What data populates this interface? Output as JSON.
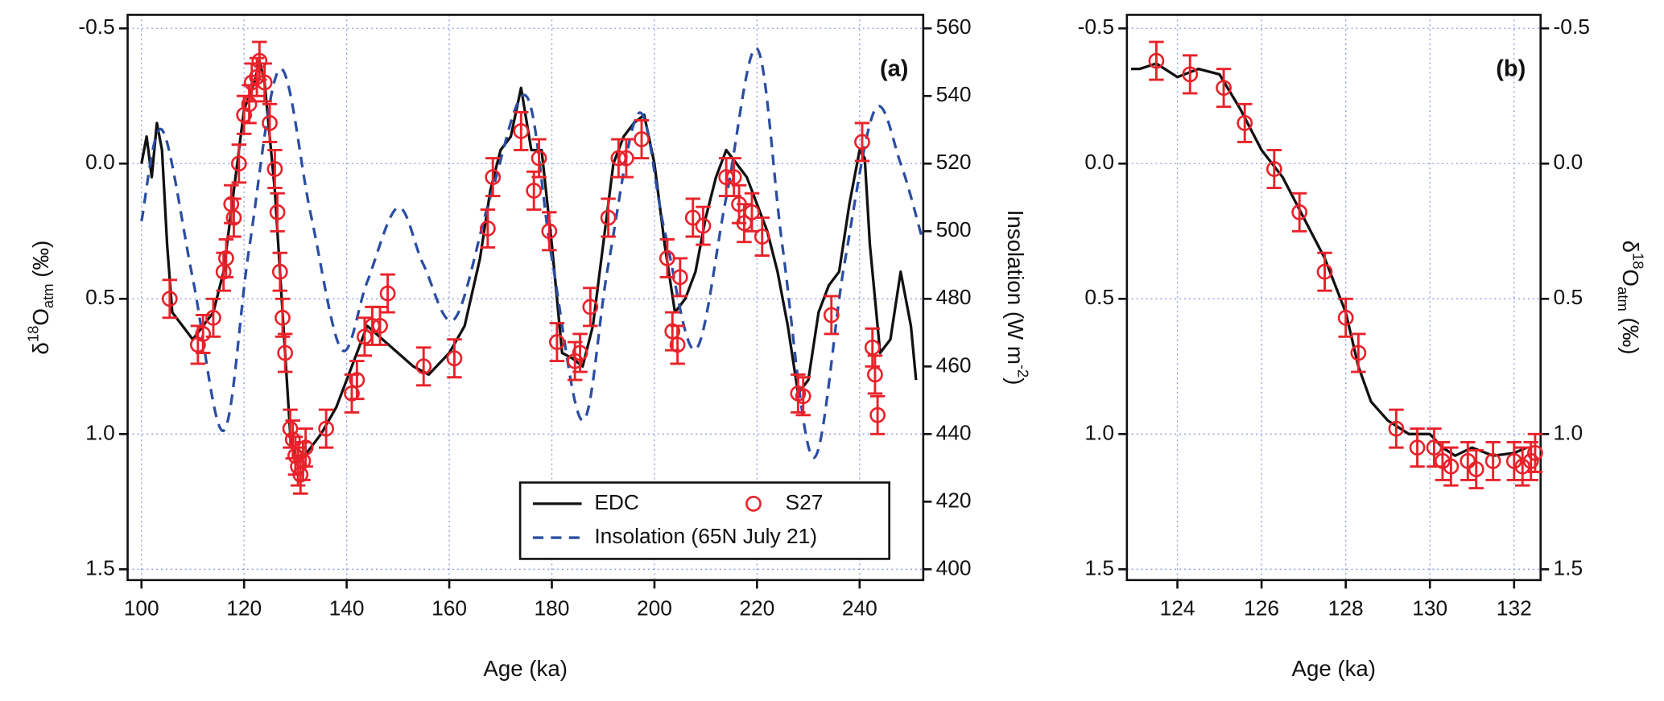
{
  "chart_data": [
    {
      "type": "line",
      "annotation": "(a)",
      "xlabel": "Age (ka)",
      "ylabel": [
        "δ",
        "18",
        "O",
        "atm",
        " (‰)"
      ],
      "y2label": [
        "Insolation (W m",
        "-2",
        ")"
      ],
      "xlim": [
        97.3,
        252.4
      ],
      "xticks": [
        100,
        120,
        140,
        160,
        180,
        200,
        220,
        240
      ],
      "ylim": [
        1.54,
        -0.55
      ],
      "yticks": [
        -0.5,
        {
          "value": 0,
          "label": "0.0"
        },
        0.5,
        {
          "value": 1,
          "label": "1.0"
        },
        1.5
      ],
      "y2lim": [
        396.8,
        564
      ],
      "y2ticks": [
        400,
        420,
        440,
        460,
        480,
        500,
        520,
        540,
        560
      ],
      "grid": true,
      "legend": "lower right",
      "series": [
        {
          "name": "EDC",
          "color": "#111111",
          "x": [
            100,
            101,
            102,
            103,
            104,
            105,
            106,
            108,
            110,
            112,
            114,
            116,
            118,
            119,
            120,
            122,
            123,
            124,
            125,
            126,
            127,
            128,
            129,
            130,
            131,
            133,
            135,
            138,
            141,
            144,
            147,
            150,
            153,
            156,
            160,
            163,
            166,
            168,
            170,
            172,
            174,
            176,
            178,
            180,
            182,
            184,
            186,
            188,
            190,
            192,
            194,
            196,
            198,
            200,
            202,
            204,
            206,
            208,
            210,
            212,
            214,
            216,
            218,
            220,
            222,
            224,
            226,
            228,
            230,
            232,
            234,
            236,
            238,
            240,
            241,
            242,
            244,
            246,
            248,
            250,
            251
          ],
          "values": [
            0.0,
            -0.1,
            0.05,
            -0.15,
            -0.05,
            0.3,
            0.55,
            0.6,
            0.65,
            0.6,
            0.55,
            0.4,
            0.1,
            -0.05,
            -0.2,
            -0.3,
            -0.38,
            -0.3,
            -0.1,
            0.1,
            0.4,
            0.7,
            1.0,
            1.1,
            1.1,
            1.05,
            1.0,
            0.9,
            0.75,
            0.6,
            0.65,
            0.7,
            0.75,
            0.78,
            0.7,
            0.6,
            0.35,
            0.1,
            -0.05,
            -0.1,
            -0.28,
            -0.05,
            -0.05,
            0.3,
            0.7,
            0.72,
            0.75,
            0.6,
            0.3,
            0.0,
            -0.1,
            -0.15,
            -0.18,
            0.0,
            0.3,
            0.55,
            0.5,
            0.4,
            0.2,
            0.05,
            -0.05,
            0.0,
            0.05,
            0.15,
            0.25,
            0.4,
            0.6,
            0.85,
            0.8,
            0.55,
            0.45,
            0.4,
            0.15,
            -0.05,
            -0.02,
            0.3,
            0.7,
            0.65,
            0.4,
            0.6,
            0.8
          ]
        },
        {
          "name": "Insolation (65N July 21)",
          "color": "#2b4ea2",
          "dash": true,
          "axis": "y2",
          "x": [
            100,
            104,
            110,
            116,
            121,
            127,
            133,
            139,
            144,
            150,
            155,
            161,
            168,
            175,
            180,
            186,
            191,
            197,
            202,
            208,
            214,
            220,
            225,
            231,
            237,
            243,
            248,
            252
          ],
          "values": [
            503,
            530,
            486,
            441,
            495,
            548,
            505,
            465,
            485,
            507,
            490,
            474,
            510,
            540,
            492,
            444,
            490,
            535,
            500,
            465,
            510,
            554,
            495,
            433,
            490,
            536,
            520,
            499
          ]
        },
        {
          "name": "S27",
          "color": "#e8222a",
          "type": "scatter",
          "error": 0.07,
          "x": [
            105.5,
            111,
            112,
            114,
            116,
            116.5,
            117.5,
            118,
            119,
            120,
            121,
            121.5,
            122.5,
            123,
            124,
            125,
            126,
            126.5,
            127,
            127.5,
            128,
            129,
            129.5,
            130,
            130.5,
            131,
            131.5,
            132,
            136,
            141,
            142,
            143.5,
            145,
            146.5,
            148,
            155,
            161,
            167.5,
            168.5,
            174,
            176.5,
            177.5,
            179.5,
            181,
            184.5,
            185.5,
            187.5,
            191,
            193,
            194.5,
            197.5,
            202.5,
            203.5,
            204.5,
            205,
            207.5,
            209.5,
            214,
            215.5,
            216.5,
            217.5,
            219,
            221,
            228,
            229,
            234.5,
            240.5,
            242.5,
            243,
            243.5
          ],
          "values": [
            0.5,
            0.67,
            0.63,
            0.57,
            0.4,
            0.35,
            0.15,
            0.2,
            0.0,
            -0.18,
            -0.22,
            -0.3,
            -0.32,
            -0.38,
            -0.3,
            -0.15,
            0.02,
            0.18,
            0.4,
            0.57,
            0.7,
            0.98,
            1.02,
            1.08,
            1.12,
            1.15,
            1.1,
            1.05,
            0.98,
            0.85,
            0.8,
            0.64,
            0.6,
            0.6,
            0.48,
            0.75,
            0.72,
            0.24,
            0.05,
            -0.12,
            0.1,
            -0.02,
            0.25,
            0.66,
            0.73,
            0.7,
            0.53,
            0.2,
            -0.02,
            -0.02,
            -0.09,
            0.35,
            0.62,
            0.67,
            0.42,
            0.2,
            0.23,
            0.05,
            0.05,
            0.15,
            0.22,
            0.18,
            0.27,
            0.85,
            0.86,
            0.56,
            -0.08,
            0.68,
            0.78,
            0.93
          ]
        }
      ]
    },
    {
      "type": "line",
      "annotation": "(b)",
      "xlabel": "Age (ka)",
      "y2label": [
        "δ",
        "18",
        "O",
        "atm",
        " (‰)"
      ],
      "xlim": [
        122.8,
        132.63
      ],
      "xticks": [
        124,
        126,
        128,
        130,
        132
      ],
      "ylim": [
        1.54,
        -0.55
      ],
      "yticks": [
        -0.5,
        {
          "value": 0,
          "label": "0.0"
        },
        0.5,
        {
          "value": 1,
          "label": "1.0"
        },
        1.5
      ],
      "y2lim": [
        1.54,
        -0.55
      ],
      "y2ticks": [
        -0.5,
        {
          "value": 0,
          "label": "0.0"
        },
        0.5,
        {
          "value": 1,
          "label": "1.0"
        },
        1.5
      ],
      "grid": true,
      "series": [
        {
          "name": "EDC",
          "color": "#111111",
          "x": [
            122.9,
            123.1,
            123.5,
            124,
            124.5,
            125,
            125.5,
            126,
            126.5,
            127,
            127.5,
            128,
            128.3,
            128.6,
            129,
            129.5,
            130,
            130.3,
            130.6,
            131,
            131.5,
            132,
            132.3
          ],
          "values": [
            -0.35,
            -0.35,
            -0.37,
            -0.32,
            -0.35,
            -0.33,
            -0.2,
            -0.05,
            0.05,
            0.2,
            0.35,
            0.55,
            0.75,
            0.88,
            0.95,
            1.0,
            1.0,
            1.05,
            1.08,
            1.05,
            1.08,
            1.07,
            1.05
          ]
        },
        {
          "name": "S27",
          "color": "#e8222a",
          "type": "scatter",
          "error": 0.07,
          "x": [
            123.5,
            124.3,
            125.1,
            125.6,
            126.3,
            126.9,
            127.5,
            128,
            128.3,
            129.2,
            129.7,
            130.1,
            130.3,
            130.5,
            130.9,
            131.1,
            131.5,
            132,
            132.2,
            132.4,
            132.5
          ],
          "values": [
            -0.38,
            -0.33,
            -0.28,
            -0.15,
            0.02,
            0.18,
            0.4,
            0.57,
            0.7,
            0.98,
            1.05,
            1.05,
            1.1,
            1.12,
            1.1,
            1.13,
            1.1,
            1.1,
            1.12,
            1.1,
            1.07
          ]
        }
      ]
    }
  ]
}
